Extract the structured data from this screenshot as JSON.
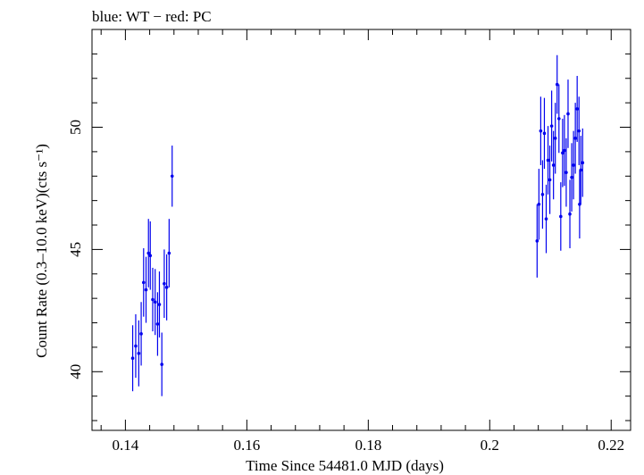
{
  "chart_data": {
    "type": "scatter",
    "title": "blue: WT − red: PC",
    "xlabel": "Time Since 54481.0 MJD (days)",
    "ylabel": "Count Rate (0.3–10.0 keV)(cts s⁻¹)",
    "xlim": [
      0.1345,
      0.2232
    ],
    "ylim": [
      37.6,
      54.0
    ],
    "x_ticks": [
      0.14,
      0.16,
      0.18,
      0.2,
      0.22
    ],
    "x_tick_labels": [
      "0.14",
      "0.16",
      "0.18",
      "0.2",
      "0.22"
    ],
    "y_ticks": [
      40,
      45,
      50
    ],
    "y_tick_labels": [
      "40",
      "45",
      "50"
    ],
    "grid": false,
    "series": [
      {
        "name": "WT",
        "color": "#0000ee",
        "points": [
          {
            "x": 0.1412,
            "y": 40.55,
            "err": 1.35
          },
          {
            "x": 0.1417,
            "y": 41.05,
            "err": 1.3
          },
          {
            "x": 0.1422,
            "y": 40.75,
            "err": 1.35
          },
          {
            "x": 0.1426,
            "y": 41.55,
            "err": 1.3
          },
          {
            "x": 0.143,
            "y": 43.65,
            "err": 1.4
          },
          {
            "x": 0.1434,
            "y": 43.35,
            "err": 1.35
          },
          {
            "x": 0.1438,
            "y": 44.85,
            "err": 1.4
          },
          {
            "x": 0.1441,
            "y": 44.75,
            "err": 1.4
          },
          {
            "x": 0.1445,
            "y": 42.95,
            "err": 1.3
          },
          {
            "x": 0.1449,
            "y": 42.85,
            "err": 1.35
          },
          {
            "x": 0.1453,
            "y": 41.95,
            "err": 1.3
          },
          {
            "x": 0.1456,
            "y": 42.75,
            "err": 1.35
          },
          {
            "x": 0.146,
            "y": 40.3,
            "err": 1.3
          },
          {
            "x": 0.1464,
            "y": 43.6,
            "err": 1.4
          },
          {
            "x": 0.1468,
            "y": 43.45,
            "err": 1.35
          },
          {
            "x": 0.1472,
            "y": 44.85,
            "err": 1.4
          },
          {
            "x": 0.1477,
            "y": 48.0,
            "err": 1.25
          }
        ]
      },
      {
        "name": "WT",
        "color": "#0000ee",
        "points": [
          {
            "x": 0.2078,
            "y": 45.35,
            "err": 1.5
          },
          {
            "x": 0.2081,
            "y": 46.85,
            "err": 1.45
          },
          {
            "x": 0.2084,
            "y": 49.85,
            "err": 1.4
          },
          {
            "x": 0.2087,
            "y": 47.25,
            "err": 1.4
          },
          {
            "x": 0.209,
            "y": 49.75,
            "err": 1.45
          },
          {
            "x": 0.2093,
            "y": 46.25,
            "err": 1.4
          },
          {
            "x": 0.2096,
            "y": 48.65,
            "err": 1.4
          },
          {
            "x": 0.2099,
            "y": 47.85,
            "err": 1.4
          },
          {
            "x": 0.2102,
            "y": 50.05,
            "err": 1.45
          },
          {
            "x": 0.2105,
            "y": 48.45,
            "err": 1.4
          },
          {
            "x": 0.2108,
            "y": 49.55,
            "err": 1.45
          },
          {
            "x": 0.2111,
            "y": 51.75,
            "err": 1.2
          },
          {
            "x": 0.2114,
            "y": 50.35,
            "err": 1.4
          },
          {
            "x": 0.2117,
            "y": 46.35,
            "err": 1.4
          },
          {
            "x": 0.212,
            "y": 48.95,
            "err": 1.4
          },
          {
            "x": 0.2123,
            "y": 49.05,
            "err": 1.45
          },
          {
            "x": 0.2126,
            "y": 48.15,
            "err": 1.4
          },
          {
            "x": 0.2129,
            "y": 50.55,
            "err": 1.4
          },
          {
            "x": 0.2132,
            "y": 46.45,
            "err": 1.4
          },
          {
            "x": 0.2135,
            "y": 47.95,
            "err": 1.4
          },
          {
            "x": 0.2138,
            "y": 48.45,
            "err": 1.4
          },
          {
            "x": 0.2141,
            "y": 49.55,
            "err": 1.45
          },
          {
            "x": 0.2144,
            "y": 50.75,
            "err": 1.35
          },
          {
            "x": 0.2147,
            "y": 49.85,
            "err": 1.4
          },
          {
            "x": 0.215,
            "y": 48.25,
            "err": 1.4
          },
          {
            "x": 0.2148,
            "y": 46.85,
            "err": 1.4
          },
          {
            "x": 0.2153,
            "y": 48.55,
            "err": 1.4
          }
        ]
      }
    ]
  }
}
